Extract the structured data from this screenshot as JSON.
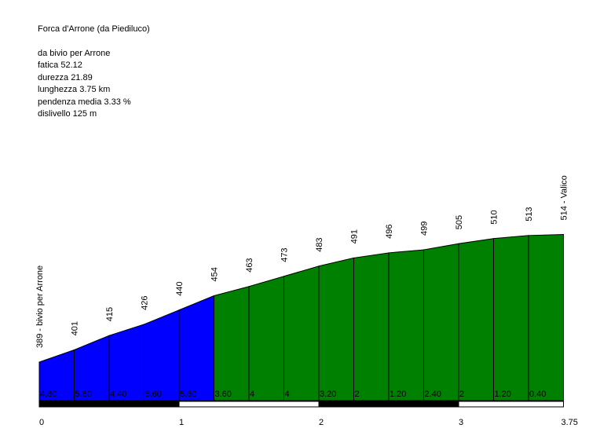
{
  "info": {
    "title": "Forca d'Arrone (da Piediluco)",
    "lines": [
      "da bivio per Arrone",
      "fatica 52.12",
      "durezza 21.89",
      "lunghezza 3.75 km",
      "pendenza media 3.33 %",
      "dislivello 125 m"
    ]
  },
  "colors": {
    "steep": "#0000ff",
    "mild": "#008000",
    "outline": "#000000",
    "bar_dark": "#000000",
    "bar_light": "#ffffff"
  },
  "chart_data": {
    "type": "area",
    "title": "Forca d'Arrone (da Piediluco)",
    "x_unit": "km",
    "y_unit": "m",
    "xlim": [
      0,
      3.75
    ],
    "x_ticks": [
      "0",
      "1",
      "2",
      "3",
      "3.75"
    ],
    "x_tick_values": [
      0,
      1,
      2,
      3,
      3.75
    ],
    "points": [
      {
        "x": 0.0,
        "elev": 389,
        "label": "389 - bivio per Arrone"
      },
      {
        "x": 0.25,
        "elev": 401,
        "label": "401"
      },
      {
        "x": 0.5,
        "elev": 415,
        "label": "415"
      },
      {
        "x": 0.75,
        "elev": 426,
        "label": "426"
      },
      {
        "x": 1.0,
        "elev": 440,
        "label": "440"
      },
      {
        "x": 1.25,
        "elev": 454,
        "label": "454"
      },
      {
        "x": 1.5,
        "elev": 463,
        "label": "463"
      },
      {
        "x": 1.75,
        "elev": 473,
        "label": "473"
      },
      {
        "x": 2.0,
        "elev": 483,
        "label": "483"
      },
      {
        "x": 2.25,
        "elev": 491,
        "label": "491"
      },
      {
        "x": 2.5,
        "elev": 496,
        "label": "496"
      },
      {
        "x": 2.75,
        "elev": 499,
        "label": "499"
      },
      {
        "x": 3.0,
        "elev": 505,
        "label": "505"
      },
      {
        "x": 3.25,
        "elev": 510,
        "label": "510"
      },
      {
        "x": 3.5,
        "elev": 513,
        "label": "513"
      },
      {
        "x": 3.75,
        "elev": 514,
        "label": "514 - Valico"
      }
    ],
    "segments": [
      {
        "from": 0.0,
        "to": 0.25,
        "gradient": "4.80",
        "color": "#0000ff"
      },
      {
        "from": 0.25,
        "to": 0.5,
        "gradient": "5.60",
        "color": "#0000ff"
      },
      {
        "from": 0.5,
        "to": 0.75,
        "gradient": "4.40",
        "color": "#0000ff"
      },
      {
        "from": 0.75,
        "to": 1.0,
        "gradient": "5.60",
        "color": "#0000ff"
      },
      {
        "from": 1.0,
        "to": 1.25,
        "gradient": "5.60",
        "color": "#0000ff"
      },
      {
        "from": 1.25,
        "to": 1.5,
        "gradient": "3.60",
        "color": "#008000"
      },
      {
        "from": 1.5,
        "to": 1.75,
        "gradient": "4",
        "color": "#008000"
      },
      {
        "from": 1.75,
        "to": 2.0,
        "gradient": "4",
        "color": "#008000"
      },
      {
        "from": 2.0,
        "to": 2.25,
        "gradient": "3.20",
        "color": "#008000"
      },
      {
        "from": 2.25,
        "to": 2.5,
        "gradient": "2",
        "color": "#008000"
      },
      {
        "from": 2.5,
        "to": 2.75,
        "gradient": "1.20",
        "color": "#008000"
      },
      {
        "from": 2.75,
        "to": 3.0,
        "gradient": "2.40",
        "color": "#008000"
      },
      {
        "from": 3.0,
        "to": 3.25,
        "gradient": "2",
        "color": "#008000"
      },
      {
        "from": 3.25,
        "to": 3.5,
        "gradient": "1.20",
        "color": "#008000"
      },
      {
        "from": 3.5,
        "to": 3.75,
        "gradient": "0.40",
        "color": "#008000"
      }
    ]
  }
}
